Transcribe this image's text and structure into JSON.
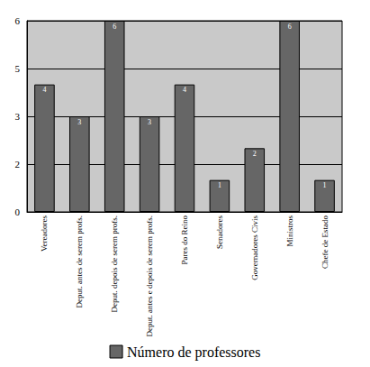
{
  "chart_data": {
    "type": "bar",
    "categories": [
      "Vereadores",
      "Deput. antes de serem profs.",
      "Deput. depois de serem profs.",
      "Deput. antes e depois de serem profs.",
      "Pares do Reino",
      "Senadores",
      "Governadores Civis",
      "Ministros",
      "Chefe de Estado"
    ],
    "series": [
      {
        "name": "Número de professores",
        "color": "#666666",
        "values": [
          4,
          3,
          6,
          3,
          4,
          1,
          2,
          6,
          1
        ]
      }
    ],
    "ylim": [
      0,
      6
    ],
    "yticks": [
      0,
      {
        "value": 1.5,
        "label": "2"
      },
      3,
      {
        "value": 4.5,
        "label": "5"
      },
      6
    ],
    "grid": true,
    "legend": "bottom",
    "data_labels": true
  }
}
